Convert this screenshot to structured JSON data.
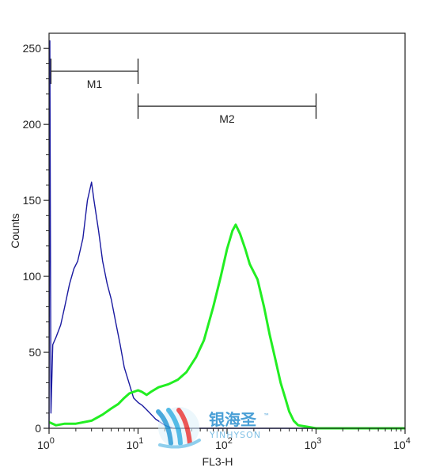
{
  "chart_data": {
    "type": "line",
    "xlabel": "FL3-H",
    "ylabel": "Counts",
    "xscale": "log",
    "xlim": [
      1,
      10000
    ],
    "ylim": [
      0,
      260
    ],
    "grid": false,
    "x_ticks": [
      {
        "value": 1,
        "base": "10",
        "exp": "0"
      },
      {
        "value": 10,
        "base": "10",
        "exp": "1"
      },
      {
        "value": 100,
        "base": "10",
        "exp": "2"
      },
      {
        "value": 1000,
        "base": "10",
        "exp": "3"
      },
      {
        "value": 10000,
        "base": "10",
        "exp": "4"
      }
    ],
    "y_ticks": [
      0,
      50,
      100,
      150,
      200,
      250
    ],
    "markers": [
      {
        "name": "M1",
        "x_start": 1.05,
        "x_end": 10,
        "y": 235
      },
      {
        "name": "M2",
        "x_start": 10,
        "x_end": 1000,
        "y": 212
      }
    ],
    "series": [
      {
        "color": "#1a1aa0",
        "points": [
          [
            1,
            0
          ],
          [
            1.02,
            255
          ],
          [
            1.05,
            10
          ],
          [
            1.1,
            55
          ],
          [
            1.2,
            60
          ],
          [
            1.35,
            68
          ],
          [
            1.5,
            80
          ],
          [
            1.7,
            95
          ],
          [
            1.9,
            105
          ],
          [
            2.1,
            110
          ],
          [
            2.4,
            125
          ],
          [
            2.7,
            150
          ],
          [
            3.0,
            162
          ],
          [
            3.2,
            150
          ],
          [
            3.6,
            130
          ],
          [
            4.0,
            110
          ],
          [
            4.5,
            95
          ],
          [
            5.0,
            85
          ],
          [
            5.6,
            70
          ],
          [
            6.3,
            55
          ],
          [
            7.0,
            40
          ],
          [
            7.9,
            30
          ],
          [
            8.9,
            20
          ],
          [
            10,
            17
          ],
          [
            11.2,
            15
          ],
          [
            12.6,
            12
          ],
          [
            14.1,
            9
          ],
          [
            15.8,
            6
          ],
          [
            17.8,
            4
          ],
          [
            20,
            2
          ],
          [
            22,
            1
          ],
          [
            25,
            0
          ],
          [
            10000,
            0
          ]
        ]
      },
      {
        "color": "#22ee22",
        "points": [
          [
            1,
            4
          ],
          [
            1.2,
            2
          ],
          [
            1.5,
            3
          ],
          [
            2,
            3
          ],
          [
            3,
            5
          ],
          [
            4,
            9
          ],
          [
            5,
            13
          ],
          [
            6,
            16
          ],
          [
            7,
            20
          ],
          [
            8,
            23
          ],
          [
            10,
            25
          ],
          [
            11,
            24
          ],
          [
            12.5,
            22
          ],
          [
            14,
            24
          ],
          [
            17,
            27
          ],
          [
            22,
            29
          ],
          [
            28,
            32
          ],
          [
            35,
            37
          ],
          [
            45,
            47
          ],
          [
            55,
            58
          ],
          [
            70,
            80
          ],
          [
            85,
            100
          ],
          [
            100,
            118
          ],
          [
            115,
            130
          ],
          [
            125,
            134
          ],
          [
            140,
            128
          ],
          [
            160,
            118
          ],
          [
            180,
            108
          ],
          [
            220,
            98
          ],
          [
            260,
            80
          ],
          [
            300,
            62
          ],
          [
            350,
            45
          ],
          [
            400,
            30
          ],
          [
            450,
            20
          ],
          [
            500,
            11
          ],
          [
            560,
            5
          ],
          [
            630,
            2
          ],
          [
            800,
            1
          ],
          [
            1000,
            0
          ],
          [
            10000,
            0
          ]
        ]
      }
    ]
  },
  "watermark": {
    "title": "银海圣",
    "subtitle": "YINHYSON",
    "tm": "™"
  }
}
